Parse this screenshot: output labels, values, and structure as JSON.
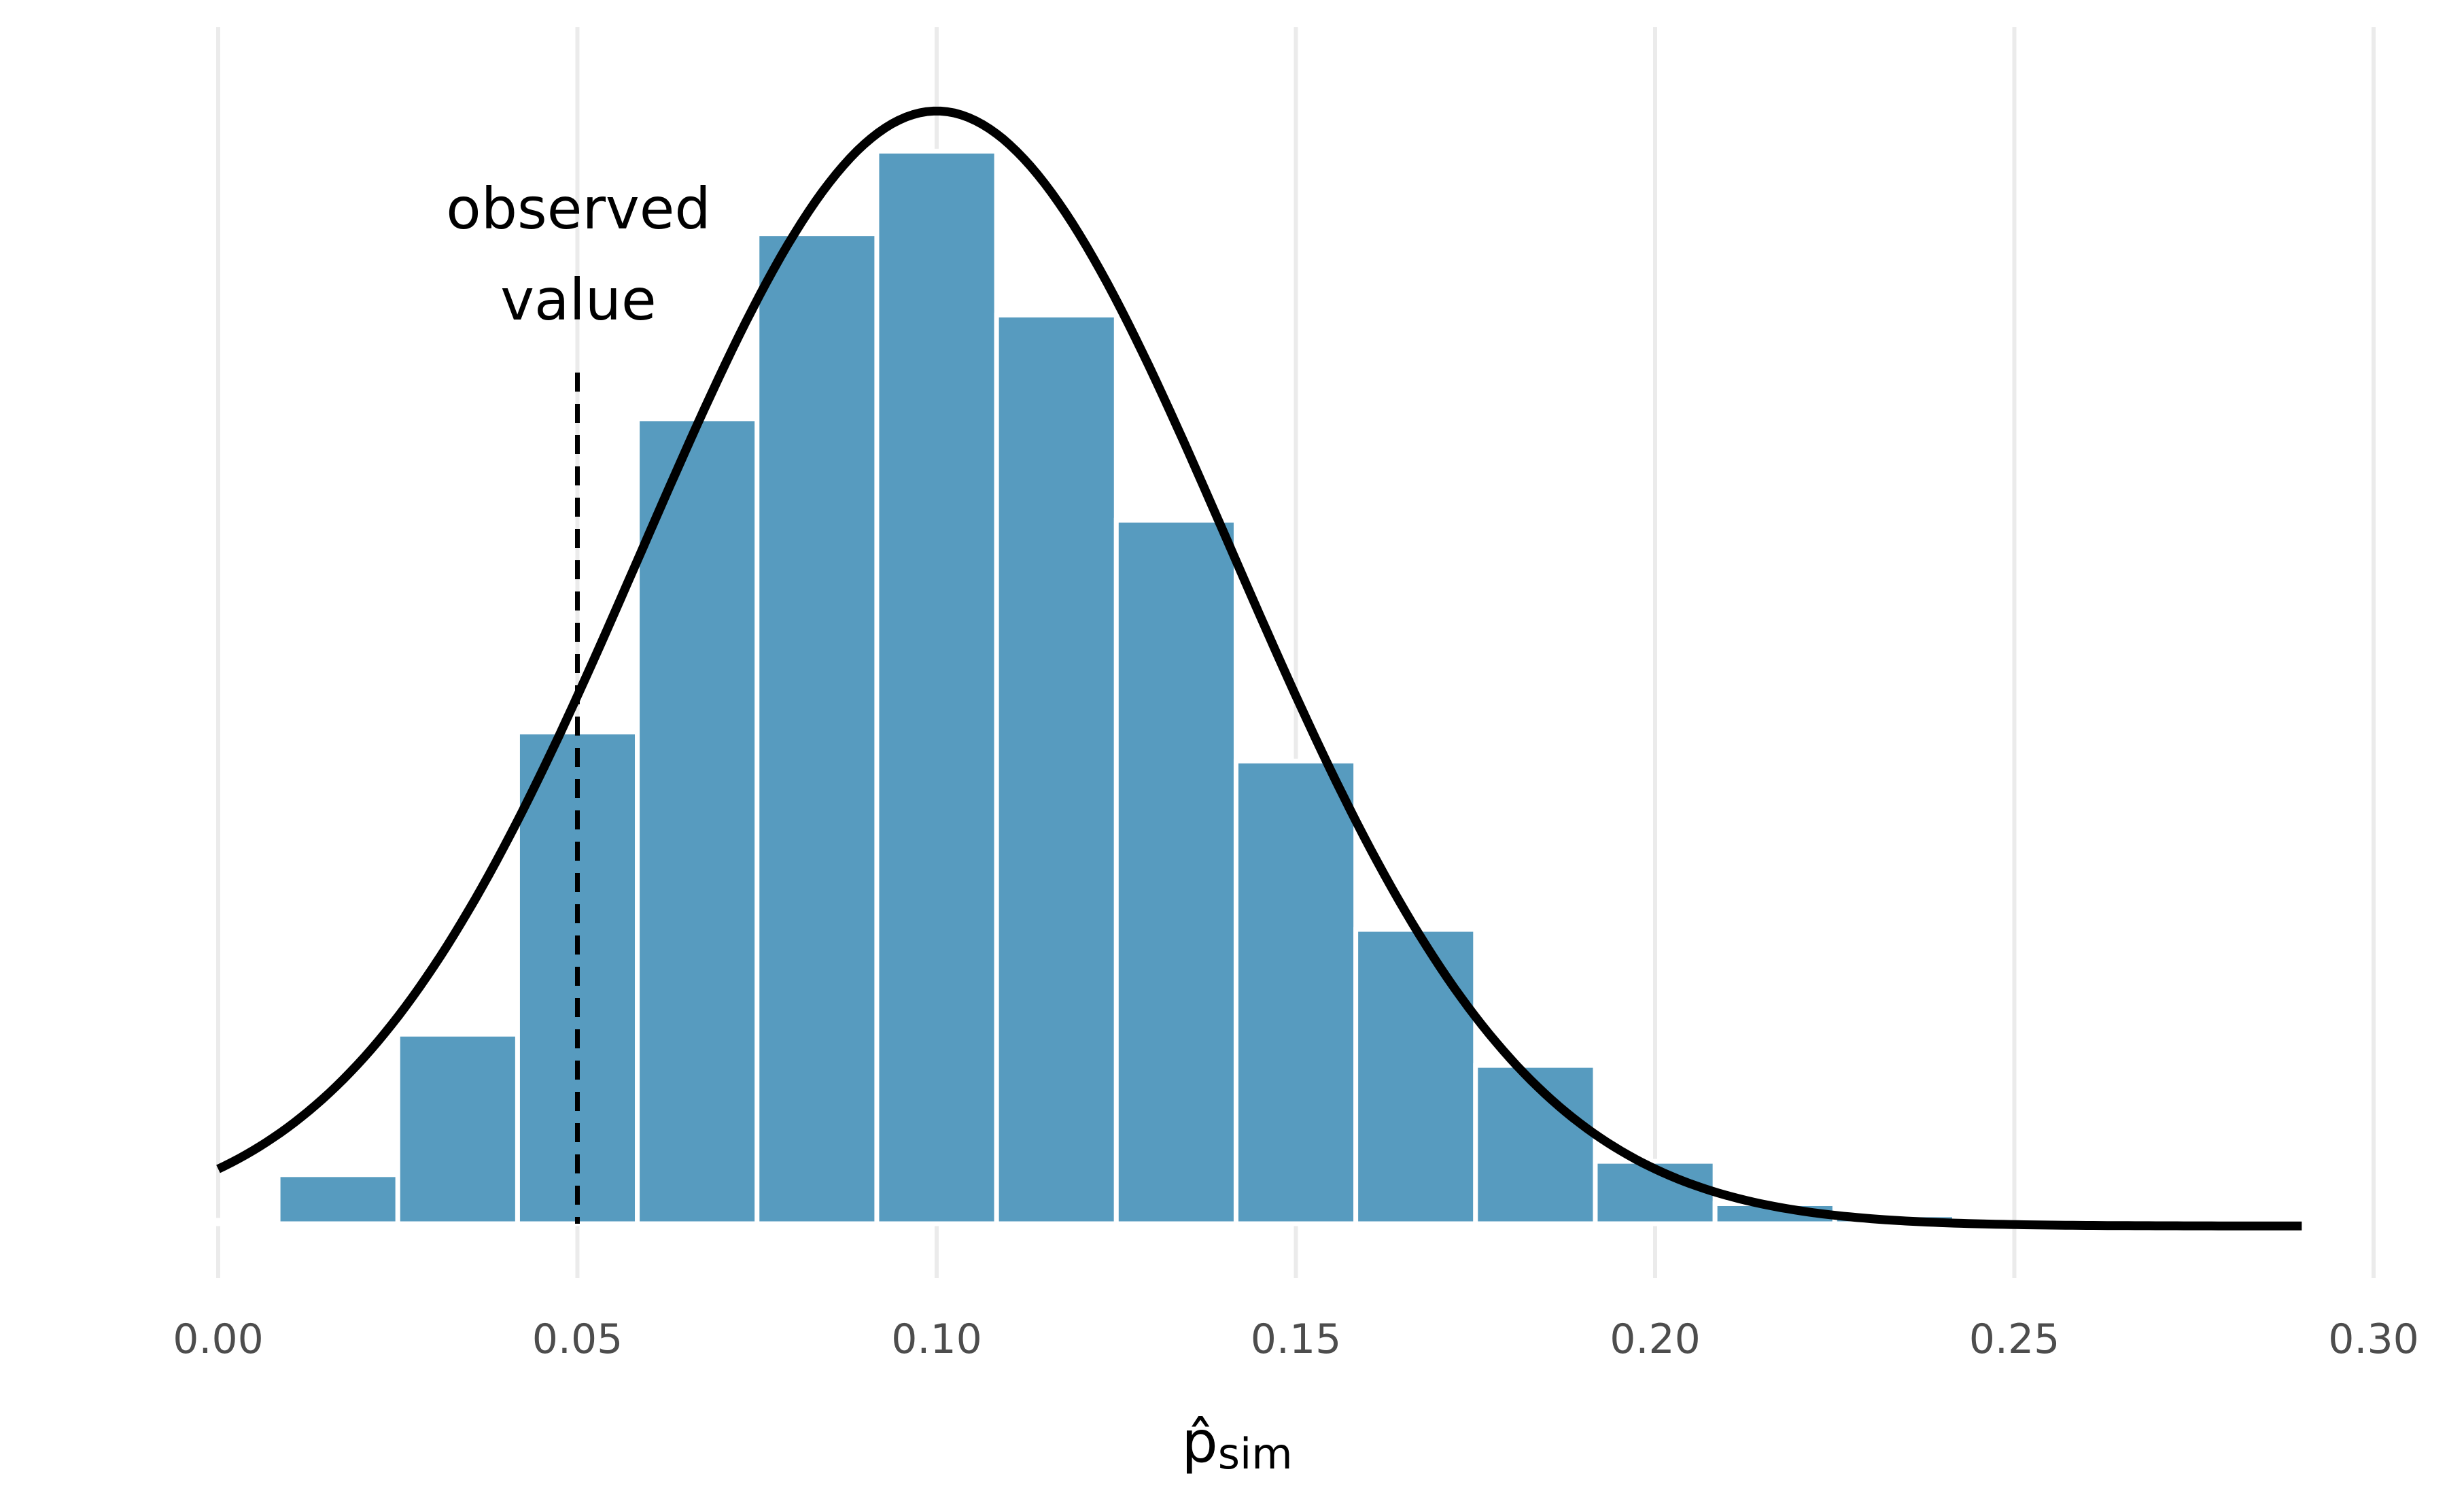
{
  "chart_data": {
    "type": "bar",
    "title": "",
    "subtitle": "",
    "xlabel": "p̂",
    "xlabel_subscript": "sim",
    "ylabel": "",
    "xlim": [
      -0.008,
      0.3
    ],
    "xticks": [
      0.0,
      0.05,
      0.1,
      0.15,
      0.2,
      0.25,
      0.3
    ],
    "xtick_labels": [
      "0.00",
      "0.05",
      "0.10",
      "0.15",
      "0.20",
      "0.25",
      "0.30"
    ],
    "y_axis_shown": false,
    "grid": "vertical-major",
    "bins": {
      "start": -0.008333,
      "width": 0.016667,
      "heights": [
        0.003,
        0.044,
        0.17,
        0.441,
        0.722,
        0.888,
        0.962,
        0.815,
        0.631,
        0.415,
        0.264,
        0.142,
        0.056,
        0.018,
        0.008
      ]
    },
    "curve": {
      "type": "normal",
      "mean": 0.1,
      "sd": 0.041,
      "x_range": [
        0.0,
        0.29
      ]
    },
    "reference_line": {
      "x": 0.05,
      "style": "dashed",
      "label": [
        "observed",
        "value"
      ]
    },
    "colors": {
      "bar": "#579bbf",
      "bar_edge": "#ffffff",
      "curve": "#000000",
      "grid": "#ebebeb",
      "tick_text": "#4d4d4d"
    }
  }
}
